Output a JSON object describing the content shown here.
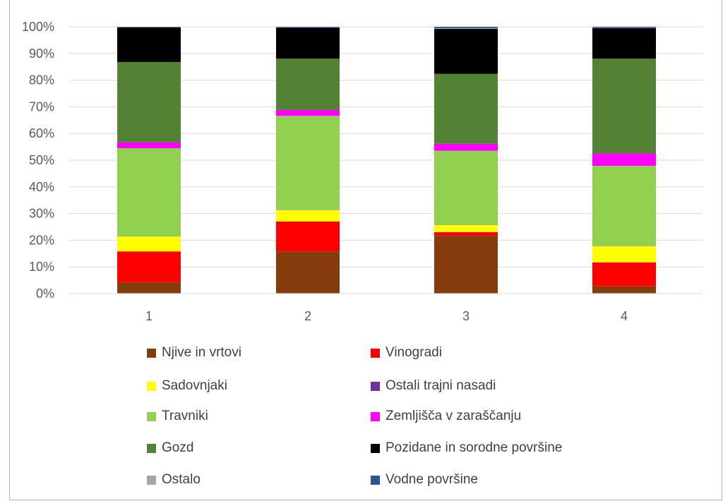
{
  "chart_data": {
    "type": "bar",
    "stacked": true,
    "percent_stacked": true,
    "categories": [
      "1",
      "2",
      "3",
      "4"
    ],
    "ylim": [
      0,
      100
    ],
    "y_ticks": [
      "0%",
      "10%",
      "20%",
      "30%",
      "40%",
      "50%",
      "60%",
      "70%",
      "80%",
      "90%",
      "100%"
    ],
    "grid": true,
    "legend_placement": "bottom",
    "series": [
      {
        "name": "Njive in vrtovi",
        "color": "#843C0C",
        "values": [
          4.2,
          15.8,
          21.6,
          2.7
        ]
      },
      {
        "name": "Vinogradi",
        "color": "#FF0000",
        "values": [
          11.6,
          11.2,
          1.4,
          9.0
        ]
      },
      {
        "name": "Sadovnjaki",
        "color": "#FFFF00",
        "values": [
          5.6,
          4.3,
          2.7,
          6.1
        ]
      },
      {
        "name": "Ostali trajni nasadi",
        "color": "#7030A0",
        "values": [
          0.1,
          0.1,
          0.1,
          0.1
        ]
      },
      {
        "name": "Travniki",
        "color": "#92D050",
        "values": [
          33.0,
          35.2,
          27.7,
          30.0
        ]
      },
      {
        "name": "Zemljišča v zaraščanju",
        "color": "#FF00FF",
        "values": [
          2.2,
          2.2,
          2.6,
          4.6
        ]
      },
      {
        "name": "Gozd",
        "color": "#548235",
        "values": [
          30.1,
          19.3,
          26.2,
          35.6
        ]
      },
      {
        "name": "Pozidane in sorodne površine",
        "color": "#000000",
        "values": [
          13.0,
          11.6,
          16.8,
          11.4
        ]
      },
      {
        "name": "Ostalo",
        "color": "#A6A6A6",
        "values": [
          0.1,
          0.1,
          0.3,
          0.1
        ]
      },
      {
        "name": "Vodne površine",
        "color": "#2F5597",
        "values": [
          0.1,
          0.2,
          0.5,
          0.4
        ]
      }
    ]
  }
}
